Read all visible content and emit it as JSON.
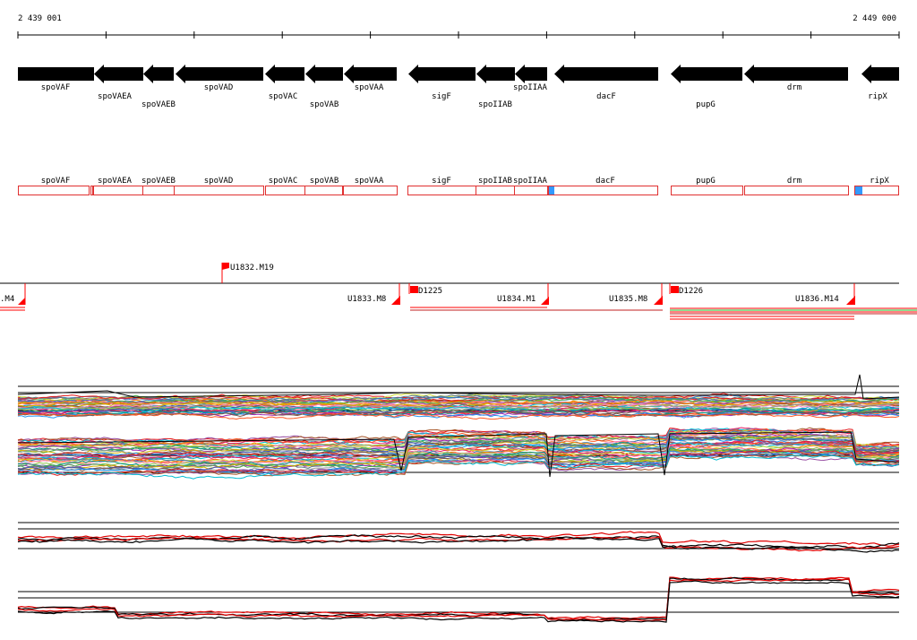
{
  "ruler": {
    "start_label": "2 439 001",
    "end_label": "2 449 000"
  },
  "genes": [
    {
      "name": "spoVAF"
    },
    {
      "name": "spoVAEA"
    },
    {
      "name": "spoVAEB"
    },
    {
      "name": "spoVAD"
    },
    {
      "name": "spoVAC"
    },
    {
      "name": "spoVAB"
    },
    {
      "name": "spoVAA"
    },
    {
      "name": "sigF"
    },
    {
      "name": "spoIIAB"
    },
    {
      "name": "spoIIAA"
    },
    {
      "name": "dacF"
    },
    {
      "name": "pupG"
    },
    {
      "name": "drm"
    },
    {
      "name": "ripX"
    }
  ],
  "transcription_units": [
    {
      "label": ".M4"
    },
    {
      "label": "U1832.M19"
    },
    {
      "label": "U1833.M8"
    },
    {
      "label": "D1225"
    },
    {
      "label": "U1834.M1"
    },
    {
      "label": "U1835.M8"
    },
    {
      "label": "D1226"
    },
    {
      "label": "U1836.M14"
    }
  ],
  "colors": {
    "gene_arrow": "#000000",
    "gene_box": "#e03030",
    "highlight": "#3399ff",
    "unit": "#ff0000"
  }
}
